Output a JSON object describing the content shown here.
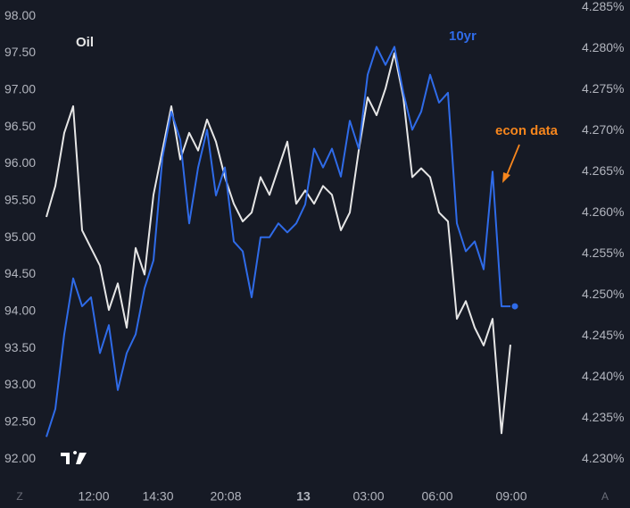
{
  "chart_data": {
    "type": "line",
    "x": [
      0,
      1,
      2,
      3,
      4,
      5,
      6,
      7,
      8,
      9,
      10,
      11,
      12,
      13,
      14,
      15,
      16,
      17,
      18,
      19,
      20,
      21,
      22,
      23,
      24,
      25,
      26,
      27,
      28,
      29,
      30,
      31,
      32,
      33,
      34,
      35,
      36,
      37,
      38,
      39,
      40,
      41,
      42,
      43,
      44,
      45,
      46,
      47,
      48,
      49,
      50,
      51,
      52
    ],
    "xlim": [
      -5.2,
      58.8
    ],
    "xticks": [
      {
        "value": 5.3,
        "label": "12:00"
      },
      {
        "value": 12.5,
        "label": "14:30"
      },
      {
        "value": 20.1,
        "label": "20:08"
      },
      {
        "value": 28.8,
        "label": "13"
      },
      {
        "value": 36.1,
        "label": "03:00"
      },
      {
        "value": 43.8,
        "label": "06:00"
      },
      {
        "value": 52.1,
        "label": "09:00"
      }
    ],
    "ylim": [
      91.7,
      98.22
    ],
    "yticks": [
      {
        "value": 98,
        "label": "98.00"
      },
      {
        "value": 97.5,
        "label": "97.50"
      },
      {
        "value": 97,
        "label": "97.00"
      },
      {
        "value": 96.5,
        "label": "96.50"
      },
      {
        "value": 96,
        "label": "96.00"
      },
      {
        "value": 95.5,
        "label": "95.50"
      },
      {
        "value": 95,
        "label": "95.00"
      },
      {
        "value": 94.5,
        "label": "94.50"
      },
      {
        "value": 94,
        "label": "94.00"
      },
      {
        "value": 93.5,
        "label": "93.50"
      },
      {
        "value": 93,
        "label": "93.00"
      },
      {
        "value": 92.5,
        "label": "92.50"
      },
      {
        "value": 92,
        "label": "92.00"
      }
    ],
    "y2lim": [
      4.2273,
      4.2859
    ],
    "y2ticks": [
      {
        "value": 4.285,
        "label": "4.285%"
      },
      {
        "value": 4.28,
        "label": "4.280%"
      },
      {
        "value": 4.275,
        "label": "4.275%"
      },
      {
        "value": 4.27,
        "label": "4.270%"
      },
      {
        "value": 4.265,
        "label": "4.265%"
      },
      {
        "value": 4.26,
        "label": "4.260%"
      },
      {
        "value": 4.255,
        "label": "4.255%"
      },
      {
        "value": 4.25,
        "label": "4.250%"
      },
      {
        "value": 4.245,
        "label": "4.245%"
      },
      {
        "value": 4.24,
        "label": "4.240%"
      },
      {
        "value": 4.235,
        "label": "4.235%"
      },
      {
        "value": 4.23,
        "label": "4.230%"
      }
    ],
    "grid": false,
    "series": [
      {
        "name": "Oil",
        "color": "#e6e6e6",
        "axis": "y",
        "values": [
          95.28,
          95.7,
          96.42,
          96.78,
          95.1,
          94.86,
          94.62,
          94.02,
          94.38,
          93.78,
          94.86,
          94.5,
          95.58,
          96.18,
          96.78,
          96.06,
          96.42,
          96.18,
          96.6,
          96.3,
          95.82,
          95.46,
          95.22,
          95.34,
          95.82,
          95.58,
          95.94,
          96.3,
          95.46,
          95.64,
          95.46,
          95.7,
          95.58,
          95.1,
          95.34,
          96.18,
          96.9,
          96.66,
          97.02,
          97.5,
          96.9,
          95.82,
          95.94,
          95.82,
          95.34,
          95.22,
          93.9,
          94.14,
          93.78,
          93.54,
          93.9,
          92.35,
          93.55
        ]
      },
      {
        "name": "10yr",
        "color": "#2f6be8",
        "axis": "y2",
        "values": [
          4.2327,
          4.2361,
          4.2452,
          4.252,
          4.2486,
          4.2497,
          4.2429,
          4.2463,
          4.2384,
          4.2429,
          4.2452,
          4.2508,
          4.2542,
          4.2667,
          4.2723,
          4.2689,
          4.2587,
          4.2655,
          4.2701,
          4.2621,
          4.2655,
          4.2565,
          4.2553,
          4.2497,
          4.257,
          4.257,
          4.2587,
          4.2576,
          4.2587,
          4.261,
          4.2678,
          4.2655,
          4.2678,
          4.2644,
          4.2712,
          4.2678,
          4.2768,
          4.2802,
          4.278,
          4.2802,
          4.2746,
          4.2701,
          4.2723,
          4.2768,
          4.2734,
          4.2746,
          4.2587,
          4.2553,
          4.2565,
          4.2531,
          4.265,
          4.2486,
          4.2486
        ]
      }
    ],
    "annotations": [
      {
        "text": "econ data",
        "color": "#f7861d"
      }
    ],
    "buttons": [
      "Z",
      "A"
    ]
  }
}
